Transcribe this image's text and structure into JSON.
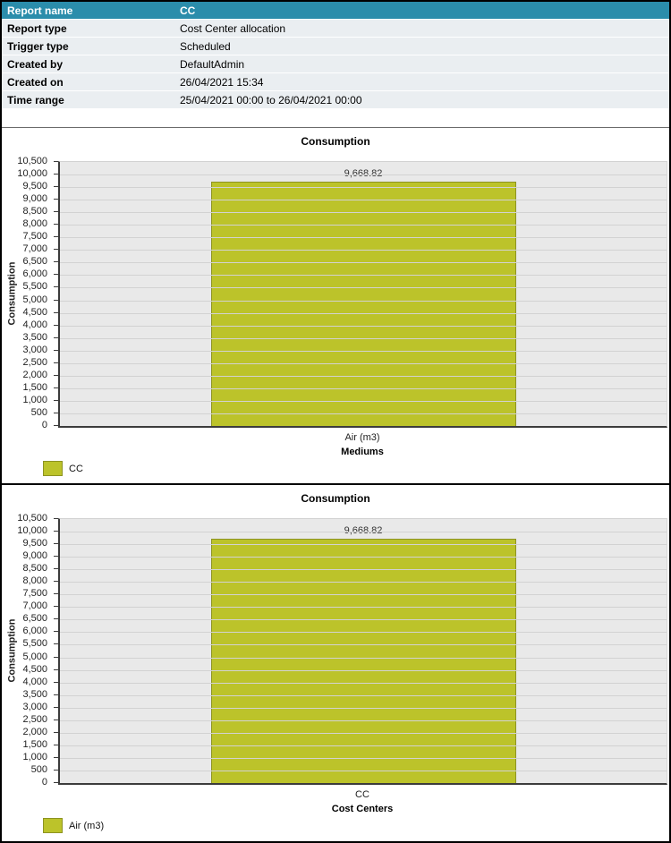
{
  "report_info": {
    "rows": [
      {
        "label": "Report name",
        "value": "CC"
      },
      {
        "label": "Report type",
        "value": "Cost Center allocation"
      },
      {
        "label": "Trigger type",
        "value": "Scheduled"
      },
      {
        "label": "Created by",
        "value": "DefaultAdmin"
      },
      {
        "label": "Created on",
        "value": "26/04/2021 15:34"
      },
      {
        "label": "Time range",
        "value": "25/04/2021 00:00 to 26/04/2021 00:00"
      }
    ]
  },
  "colors": {
    "header_bar": "#2b8dab",
    "info_row_bg": "#eaeef1",
    "plot_bg": "#e9e9e9",
    "gridline": "#d2d2d2",
    "axis": "#3c3c3c",
    "bar_fill": "#bcc32a",
    "bar_border": "#8d9322"
  },
  "chart_data": [
    {
      "type": "bar",
      "title": "Consumption",
      "ylabel": "Consumption",
      "xlabel": "Mediums",
      "categories": [
        "Air (m3)"
      ],
      "values": [
        9668.82
      ],
      "value_labels": [
        "9,668.82"
      ],
      "ylim": [
        0,
        10500
      ],
      "ytick_step": 500,
      "grid": true,
      "legend_position": "bottom-left",
      "legend": [
        {
          "label": "CC",
          "color": "#bcc32a"
        }
      ]
    },
    {
      "type": "bar",
      "title": "Consumption",
      "ylabel": "Consumption",
      "xlabel": "Cost Centers",
      "categories": [
        "CC"
      ],
      "values": [
        9668.82
      ],
      "value_labels": [
        "9,668.82"
      ],
      "ylim": [
        0,
        10500
      ],
      "ytick_step": 500,
      "grid": true,
      "legend_position": "bottom-left",
      "legend": [
        {
          "label": "Air (m3)",
          "color": "#bcc32a"
        }
      ]
    }
  ]
}
